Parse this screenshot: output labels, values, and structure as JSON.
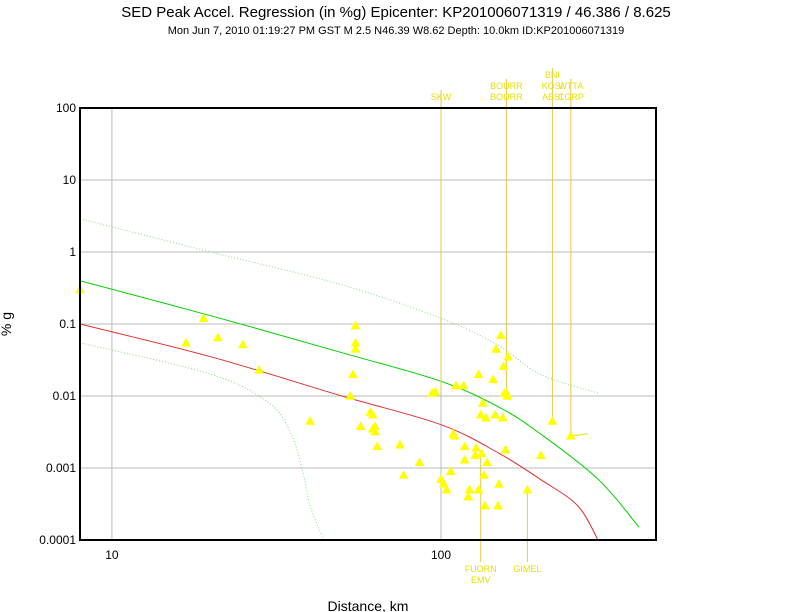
{
  "header": {
    "title": "SED Peak Accel. Regression (in %g) Epicenter: KP201006071319 / 46.386 / 8.625",
    "subtitle": "Mon Jun  7, 2010 01:19:27 PM GST   M 2.5   N46.39 W8.62   Depth: 10.0km   ID:KP201006071319"
  },
  "chart_data": {
    "type": "scatter",
    "x_scale": "log",
    "y_scale": "log",
    "xlabel": "Distance, km",
    "ylabel": "% g",
    "xlim": [
      8,
      450
    ],
    "ylim": [
      0.0001,
      100
    ],
    "x_ticks": [
      {
        "value": 10,
        "label": "10"
      },
      {
        "value": 100,
        "label": "100"
      }
    ],
    "y_ticks": [
      {
        "value": 100,
        "label": "100"
      },
      {
        "value": 10,
        "label": "10"
      },
      {
        "value": 1,
        "label": "1"
      },
      {
        "value": 0.1,
        "label": "0.1"
      },
      {
        "value": 0.01,
        "label": "0.01"
      },
      {
        "value": 0.001,
        "label": "0.001"
      },
      {
        "value": 0.0001,
        "label": "0.0001"
      }
    ],
    "grid": true,
    "colors": {
      "points": "#ffff00",
      "median": "#00d000",
      "lower_fit": "#e03030",
      "sigma": "#80e080",
      "station_lines": "#e6c84a",
      "station_labels": "#e8e000",
      "grid": "#bbbbbb"
    },
    "series": [
      {
        "role": "points",
        "points": [
          [
            8,
            0.3
          ],
          [
            16.8,
            0.055
          ],
          [
            19,
            0.12
          ],
          [
            21,
            0.065
          ],
          [
            25,
            0.052
          ],
          [
            28,
            0.023
          ],
          [
            40,
            0.0045
          ],
          [
            53,
            0.01
          ],
          [
            54,
            0.02
          ],
          [
            55,
            0.045
          ],
          [
            55,
            0.055
          ],
          [
            55,
            0.095
          ],
          [
            57,
            0.0038
          ],
          [
            61,
            0.006
          ],
          [
            62,
            0.0055
          ],
          [
            62,
            0.0035
          ],
          [
            63,
            0.0032
          ],
          [
            63,
            0.0038
          ],
          [
            64,
            0.002
          ],
          [
            75,
            0.0021
          ],
          [
            77,
            0.0008
          ],
          [
            86,
            0.0012
          ],
          [
            94,
            0.011
          ],
          [
            96,
            0.0115
          ],
          [
            100,
            0.0007
          ],
          [
            102,
            0.0006
          ],
          [
            104,
            0.0005
          ],
          [
            107,
            0.0009
          ],
          [
            109,
            0.003
          ],
          [
            110,
            0.0028
          ],
          [
            111,
            0.014
          ],
          [
            117,
            0.014
          ],
          [
            118,
            0.0013
          ],
          [
            118,
            0.002
          ],
          [
            121,
            0.0004
          ],
          [
            122,
            0.0005
          ],
          [
            127,
            0.0015
          ],
          [
            128,
            0.0019
          ],
          [
            130,
            0.0005
          ],
          [
            130,
            0.02
          ],
          [
            132,
            0.0055
          ],
          [
            133,
            0.0016
          ],
          [
            134,
            0.008
          ],
          [
            135,
            0.0008
          ],
          [
            136,
            0.0003
          ],
          [
            137,
            0.005
          ],
          [
            138,
            0.0012
          ],
          [
            144,
            0.017
          ],
          [
            146,
            0.0055
          ],
          [
            147,
            0.045
          ],
          [
            149,
            0.0003
          ],
          [
            150,
            0.0006
          ],
          [
            152,
            0.07
          ],
          [
            154,
            0.005
          ],
          [
            155,
            0.026
          ],
          [
            156,
            0.011
          ],
          [
            157,
            0.0018
          ],
          [
            158,
            0.011
          ],
          [
            159,
            0.01
          ],
          [
            160,
            0.035
          ],
          [
            183,
            0.0005
          ],
          [
            201,
            0.0015
          ],
          [
            218,
            0.0045
          ],
          [
            248,
            0.0028
          ]
        ]
      },
      {
        "role": "median",
        "points": [
          [
            8,
            0.4
          ],
          [
            20,
            0.13
          ],
          [
            50,
            0.04
          ],
          [
            100,
            0.016
          ],
          [
            150,
            0.007
          ],
          [
            200,
            0.003
          ],
          [
            300,
            0.0007
          ],
          [
            400,
            0.00015
          ]
        ]
      },
      {
        "role": "lower_fit",
        "points": [
          [
            8,
            0.1
          ],
          [
            20,
            0.035
          ],
          [
            50,
            0.01
          ],
          [
            100,
            0.004
          ],
          [
            150,
            0.0016
          ],
          [
            200,
            0.0007
          ],
          [
            260,
            0.0003
          ],
          [
            300,
            0.0001
          ]
        ]
      },
      {
        "role": "sigma_upper",
        "points": [
          [
            8,
            2.9
          ],
          [
            20,
            1.0
          ],
          [
            50,
            0.35
          ],
          [
            100,
            0.12
          ],
          [
            150,
            0.05
          ],
          [
            200,
            0.02
          ],
          [
            300,
            0.011
          ]
        ]
      },
      {
        "role": "sigma_lower",
        "points": [
          [
            8,
            0.055
          ],
          [
            20,
            0.02
          ],
          [
            30,
            0.008
          ],
          [
            35,
            0.003
          ],
          [
            38,
            0.0009
          ],
          [
            40,
            0.0003
          ],
          [
            44,
            0.0001
          ]
        ]
      },
      {
        "role": "station_segment",
        "points": [
          [
            250,
            0.0028
          ],
          [
            280,
            0.003
          ]
        ]
      }
    ],
    "stations": [
      {
        "x": 100,
        "y": 0.011,
        "labels": [
          "SKW"
        ]
      },
      {
        "x": 158,
        "y": 0.011,
        "labels": [
          "BOURR",
          "BOURR"
        ]
      },
      {
        "x": 218,
        "y": 0.0045,
        "labels": [
          "BNI",
          "KOSI",
          "ABSI"
        ]
      },
      {
        "x": 248,
        "y": 0.0028,
        "labels": [
          "WTTA",
          "CGRP"
        ]
      }
    ],
    "bottom_stations": [
      {
        "x": 132,
        "y": 0.0016,
        "labels": [
          "FUORN",
          "EMV"
        ]
      },
      {
        "x": 183,
        "y": 0.0005,
        "labels": [
          "GIMEL"
        ]
      }
    ]
  }
}
